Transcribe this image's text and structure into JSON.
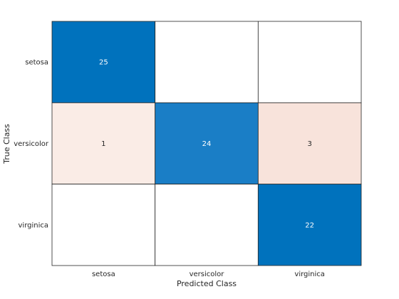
{
  "chart_data": {
    "type": "heatmap",
    "title": "",
    "xlabel": "Predicted Class",
    "ylabel": "True Class",
    "x_categories": [
      "setosa",
      "versicolor",
      "virginica"
    ],
    "y_categories": [
      "setosa",
      "versicolor",
      "virginica"
    ],
    "values": [
      [
        25,
        0,
        0
      ],
      [
        1,
        24,
        3
      ],
      [
        0,
        0,
        22
      ]
    ],
    "zero_cells_blank": true,
    "colors": {
      "correct_high": "#0072bd",
      "correct_low": "#2483c9",
      "error_low": "#fbf0ec",
      "error_high": "#f8e1d9",
      "empty": "#ffffff",
      "grid": "#262626",
      "text_dark": "#262626",
      "text_light": "#ffffff"
    },
    "grid": true,
    "legend": "none"
  }
}
